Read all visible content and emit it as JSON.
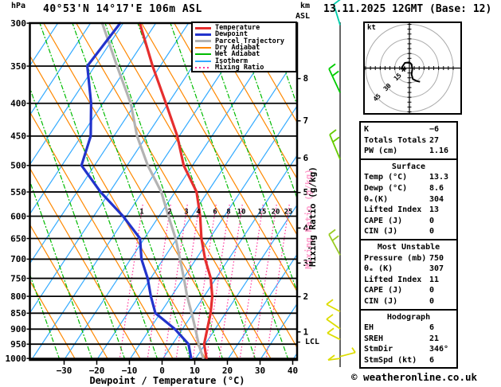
{
  "header": {
    "pressure_unit": "hPa",
    "title": "40°53'N 14°17'E 106m ASL",
    "km_label": "km",
    "asl_label": "ASL",
    "datetime": "13.11.2025 12GMT (Base: 12)"
  },
  "legend": {
    "items": [
      {
        "label": "Temperature",
        "color": "#e62e2e",
        "thick": true,
        "dotted": false
      },
      {
        "label": "Dewpoint",
        "color": "#2233cc",
        "thick": true,
        "dotted": false
      },
      {
        "label": "Parcel Trajectory",
        "color": "#b3b3b3",
        "thick": true,
        "dotted": false
      },
      {
        "label": "Dry Adiabat",
        "color": "#ff8800",
        "thick": false,
        "dotted": false
      },
      {
        "label": "Wet Adiabat",
        "color": "#00bb00",
        "thick": false,
        "dotted": false
      },
      {
        "label": "Isotherm",
        "color": "#33aaff",
        "thick": false,
        "dotted": false
      },
      {
        "label": "Mixing Ratio",
        "color": "#ff3399",
        "thick": false,
        "dotted": true
      }
    ]
  },
  "axes": {
    "pressure_ticks": [
      300,
      350,
      400,
      450,
      500,
      550,
      600,
      650,
      700,
      750,
      800,
      850,
      900,
      950,
      1000
    ],
    "temp_ticks": [
      -30,
      -20,
      -10,
      0,
      10,
      20,
      30,
      40
    ],
    "temp_axis_label": "Dewpoint / Temperature (°C)",
    "km_ticks": [
      {
        "label": "8",
        "p": 366
      },
      {
        "label": "7",
        "p": 426
      },
      {
        "label": "6",
        "p": 487
      },
      {
        "label": "5",
        "p": 551
      },
      {
        "label": "4",
        "p": 626
      },
      {
        "label": "3",
        "p": 710
      },
      {
        "label": "2",
        "p": 801
      },
      {
        "label": "1",
        "p": 909
      }
    ],
    "lcl": {
      "label": "LCL",
      "p": 943
    },
    "mixing_axis_label": "Mixing Ratio (g/kg)"
  },
  "chart_data": {
    "type": "line",
    "subtype": "skew-t-log-p-sounding",
    "title": "40°53'N 14°17'E 106m ASL",
    "xlabel": "Dewpoint / Temperature (°C)",
    "ylabel": "hPa",
    "x_ticks": [
      -30,
      -20,
      -10,
      0,
      10,
      20,
      30,
      40
    ],
    "pressure_range_hpa": [
      300,
      1000
    ],
    "series": [
      {
        "name": "Temperature",
        "color": "#e62e2e",
        "width": 3.2,
        "points_p_t": [
          [
            300,
            -74.9
          ],
          [
            350,
            -62.3
          ],
          [
            400,
            -50.7
          ],
          [
            450,
            -40.6
          ],
          [
            500,
            -32.7
          ],
          [
            550,
            -23.4
          ],
          [
            600,
            -17.4
          ],
          [
            650,
            -12.5
          ],
          [
            700,
            -7.2
          ],
          [
            750,
            -1.6
          ],
          [
            800,
            2.5
          ],
          [
            850,
            5.4
          ],
          [
            900,
            7.6
          ],
          [
            950,
            9.7
          ],
          [
            1000,
            13.3
          ]
        ]
      },
      {
        "name": "Dewpoint",
        "color": "#2233cc",
        "width": 3.2,
        "points_p_t": [
          [
            300,
            -80.9
          ],
          [
            350,
            -82.3
          ],
          [
            400,
            -73.6
          ],
          [
            450,
            -67.1
          ],
          [
            500,
            -64.0
          ],
          [
            550,
            -52.8
          ],
          [
            600,
            -41.0
          ],
          [
            650,
            -31.3
          ],
          [
            700,
            -26.7
          ],
          [
            750,
            -20.9
          ],
          [
            800,
            -16.3
          ],
          [
            850,
            -11.5
          ],
          [
            900,
            -2.3
          ],
          [
            950,
            4.9
          ],
          [
            1000,
            8.6
          ]
        ]
      },
      {
        "name": "Parcel Trajectory",
        "color": "#b3b3b3",
        "width": 3.2,
        "points_p_t": [
          [
            300,
            -86.4
          ],
          [
            350,
            -73.2
          ],
          [
            400,
            -61.5
          ],
          [
            450,
            -52.9
          ],
          [
            500,
            -43.7
          ],
          [
            550,
            -34.2
          ],
          [
            600,
            -27.1
          ],
          [
            650,
            -20.4
          ],
          [
            700,
            -14.9
          ],
          [
            750,
            -9.8
          ],
          [
            800,
            -5.2
          ],
          [
            850,
            -0.4
          ],
          [
            900,
            4.0
          ],
          [
            950,
            8.0
          ],
          [
            1000,
            12.3
          ]
        ]
      }
    ],
    "mixing_ratio_lines_g_kg": [
      1,
      2,
      3,
      4,
      6,
      8,
      10,
      15,
      20,
      25
    ],
    "grid": {
      "isotherm_color": "#33aaff",
      "dry_adiabat_color": "#ff8800",
      "wet_adiabat_color": "#00bb00",
      "mixing_ratio_color": "#ff3399",
      "isotherm_step_c": 10
    }
  },
  "wind_barbs": [
    {
      "p": 302,
      "color": "#00ccaa",
      "dx": -8,
      "dy": -26,
      "feathers": 1
    },
    {
      "p": 385,
      "color": "#00cc00",
      "dx": -14,
      "dy": -30,
      "feathers": 2
    },
    {
      "p": 489,
      "color": "#66cc00",
      "dx": -13,
      "dy": -31,
      "feathers": 2
    },
    {
      "p": 690,
      "color": "#99cc22",
      "dx": -14,
      "dy": -26,
      "feathers": 2
    },
    {
      "p": 845,
      "color": "#dddd00",
      "dx": -17,
      "dy": -9,
      "feathers": 1
    },
    {
      "p": 899,
      "color": "#dddd00",
      "dx": -17,
      "dy": -12,
      "feathers": 1
    },
    {
      "p": 934,
      "color": "#dddd00",
      "dx": -16,
      "dy": -8,
      "feathers": 1
    },
    {
      "p": 993,
      "color": "#dddd00",
      "dx": 19,
      "dy": -5,
      "feathers": 1
    },
    {
      "p": 1000,
      "color": "#dddd00",
      "dx": -15,
      "dy": 2,
      "feathers": 1
    }
  ],
  "hodograph": {
    "unit": "kt",
    "rings_kt": [
      15,
      30,
      45
    ],
    "ring_labels": [
      "15",
      "30",
      "45"
    ],
    "trace_kt": [
      [
        -7.9,
        -0.4
      ],
      [
        -4.7,
        -5.3
      ],
      [
        0,
        -5.9
      ],
      [
        2.2,
        -3.9
      ],
      [
        3,
        1
      ],
      [
        2.2,
        6.4
      ],
      [
        3.5,
        11.3
      ],
      [
        7.6,
        13.3
      ],
      [
        10.9,
        14.1
      ]
    ],
    "marker_kt": [
      -6,
      1
    ]
  },
  "info_panel": {
    "sections": [
      {
        "header": null,
        "rows": [
          [
            "K",
            "−6"
          ],
          [
            "Totals Totals",
            "27"
          ],
          [
            "PW (cm)",
            "1.16"
          ]
        ]
      },
      {
        "header": "Surface",
        "rows": [
          [
            "Temp (°C)",
            "13.3"
          ],
          [
            "Dewp (°C)",
            "8.6"
          ],
          [
            "θₑ(K)",
            "304"
          ],
          [
            "Lifted Index",
            "13"
          ],
          [
            "CAPE (J)",
            "0"
          ],
          [
            "CIN (J)",
            "0"
          ]
        ]
      },
      {
        "header": "Most Unstable",
        "rows": [
          [
            "Pressure (mb)",
            "750"
          ],
          [
            "θₑ (K)",
            "307"
          ],
          [
            "Lifted Index",
            "11"
          ],
          [
            "CAPE (J)",
            "0"
          ],
          [
            "CIN (J)",
            "0"
          ]
        ]
      },
      {
        "header": "Hodograph",
        "rows": [
          [
            "EH",
            "6"
          ],
          [
            "SREH",
            "21"
          ],
          [
            "StmDir",
            "346°"
          ],
          [
            "StmSpd (kt)",
            "6"
          ]
        ]
      }
    ]
  },
  "footer": {
    "copyright": "© weatheronline.co.uk"
  }
}
